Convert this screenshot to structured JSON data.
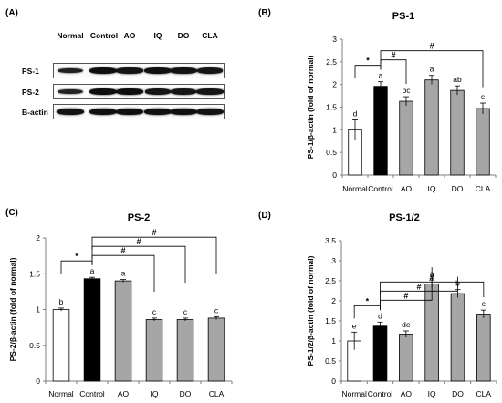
{
  "blot": {
    "panel_label": "(A)",
    "lanes": [
      "Normal",
      "Control",
      "AO",
      "IQ",
      "DO",
      "CLA"
    ],
    "rows": [
      {
        "label": "PS-1",
        "intensities": [
          0.72,
          0.95,
          0.88,
          0.92,
          0.9,
          0.86
        ]
      },
      {
        "label": "PS-2",
        "intensities": [
          0.7,
          0.96,
          0.95,
          0.86,
          0.86,
          0.88
        ]
      },
      {
        "label": "B-actin",
        "intensities": [
          0.9,
          0.92,
          0.92,
          0.92,
          0.92,
          0.9
        ]
      }
    ]
  },
  "chart_data": [
    {
      "panel_label": "(B)",
      "type": "bar",
      "title": "PS-1",
      "ylabel": "PS-1/β-actin (fold of normal)",
      "xlabel": "",
      "categories": [
        "Normal",
        "Control",
        "AO",
        "IQ",
        "DO",
        "CLA"
      ],
      "values": [
        1.0,
        1.96,
        1.63,
        2.1,
        1.87,
        1.47
      ],
      "errors": [
        0.22,
        0.1,
        0.1,
        0.1,
        0.1,
        0.12
      ],
      "letters": [
        "d",
        "a",
        "bc",
        "a",
        "ab",
        "c"
      ],
      "colors": [
        "#ffffff",
        "#000000",
        "#a6a6a6",
        "#a6a6a6",
        "#a6a6a6",
        "#a6a6a6"
      ],
      "ylim": [
        0,
        3
      ],
      "yticks": [
        "0",
        "0.5",
        "1",
        "1.5",
        "2",
        "2.5",
        "3"
      ],
      "brackets": [
        {
          "from": 0,
          "to": 1,
          "label": "*"
        },
        {
          "from": 1,
          "to": 2,
          "label": "#"
        },
        {
          "from": 1,
          "to": 5,
          "label": "#"
        }
      ]
    },
    {
      "panel_label": "(C)",
      "type": "bar",
      "title": "PS-2",
      "ylabel": "PS-2/β-actin (fold of normal)",
      "xlabel": "",
      "categories": [
        "Normal",
        "Control",
        "AO",
        "IQ",
        "DO",
        "CLA"
      ],
      "values": [
        1.0,
        1.43,
        1.4,
        0.86,
        0.86,
        0.88
      ],
      "errors": [
        0.02,
        0.02,
        0.02,
        0.02,
        0.02,
        0.02
      ],
      "letters": [
        "b",
        "a",
        "a",
        "c",
        "c",
        "c"
      ],
      "colors": [
        "#ffffff",
        "#000000",
        "#a6a6a6",
        "#a6a6a6",
        "#a6a6a6",
        "#a6a6a6"
      ],
      "ylim": [
        0,
        2
      ],
      "yticks": [
        "0",
        "0.5",
        "1",
        "1.5",
        "2"
      ],
      "brackets": [
        {
          "from": 0,
          "to": 1,
          "label": "*"
        },
        {
          "from": 1,
          "to": 3,
          "label": "#"
        },
        {
          "from": 1,
          "to": 4,
          "label": "#"
        },
        {
          "from": 1,
          "to": 5,
          "label": "#"
        }
      ]
    },
    {
      "panel_label": "(D)",
      "type": "bar",
      "title": "PS-1/2",
      "ylabel": "PS-1/2/β-actin (fold of normal)",
      "xlabel": "",
      "categories": [
        "Normal",
        "Control",
        "AO",
        "IQ",
        "DO",
        "CLA"
      ],
      "values": [
        1.0,
        1.37,
        1.17,
        2.42,
        2.18,
        1.67
      ],
      "errors": [
        0.22,
        0.1,
        0.08,
        0.1,
        0.1,
        0.1
      ],
      "letters": [
        "e",
        "d",
        "de",
        "a",
        "b",
        "c"
      ],
      "colors": [
        "#ffffff",
        "#000000",
        "#a6a6a6",
        "#a6a6a6",
        "#a6a6a6",
        "#a6a6a6"
      ],
      "ylim": [
        0,
        3.5
      ],
      "yticks": [
        "0",
        "0.5",
        "1",
        "1.5",
        "2",
        "2.5",
        "3",
        "3.5"
      ],
      "brackets": [
        {
          "from": 0,
          "to": 1,
          "label": "*"
        },
        {
          "from": 1,
          "to": 3,
          "label": "#"
        },
        {
          "from": 1,
          "to": 4,
          "label": "#"
        },
        {
          "from": 1,
          "to": 5,
          "label": "#"
        }
      ]
    }
  ]
}
